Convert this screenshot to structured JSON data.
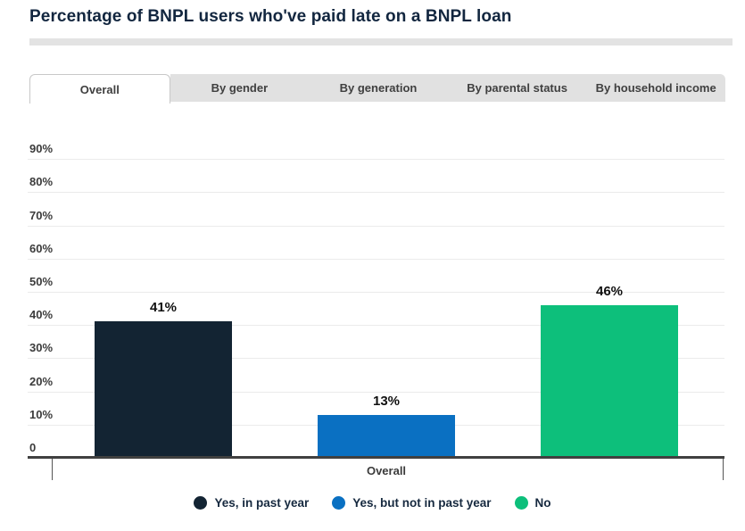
{
  "title": "Percentage of BNPL users who've paid late on a BNPL loan",
  "tabs": {
    "items": [
      {
        "label": "Overall",
        "active": true
      },
      {
        "label": "By gender",
        "active": false
      },
      {
        "label": "By generation",
        "active": false
      },
      {
        "label": "By parental status",
        "active": false
      },
      {
        "label": "By household income",
        "active": false
      }
    ]
  },
  "chart_data": {
    "type": "bar",
    "title": "Percentage of BNPL users who've paid late on a BNPL loan",
    "categories": [
      "Overall"
    ],
    "series": [
      {
        "name": "Yes, in past year",
        "values": [
          41
        ],
        "labels": [
          "41%"
        ],
        "color": "#132433"
      },
      {
        "name": "Yes, but not in past year",
        "values": [
          13
        ],
        "labels": [
          "13%"
        ],
        "color": "#0a70c2"
      },
      {
        "name": "No",
        "values": [
          46
        ],
        "labels": [
          "46%"
        ],
        "color": "#0dbf7b"
      }
    ],
    "xlabel": "",
    "ylabel": "",
    "ylim": [
      0,
      90
    ],
    "grid": true,
    "legend_position": "bottom",
    "y_axis_ticks": [
      {
        "label": "90%",
        "value": 90
      },
      {
        "label": "80%",
        "value": 80
      },
      {
        "label": "70%",
        "value": 70
      },
      {
        "label": "60%",
        "value": 60
      },
      {
        "label": "50%",
        "value": 50
      },
      {
        "label": "40%",
        "value": 40
      },
      {
        "label": "30%",
        "value": 30
      },
      {
        "label": "20%",
        "value": 20
      },
      {
        "label": "10%",
        "value": 10
      },
      {
        "label": "0",
        "value": 0
      }
    ]
  },
  "colors": {
    "title_text": "#12263f",
    "series_dark_navy": "#132433",
    "series_blue": "#0a70c2",
    "series_green": "#0dbf7b"
  }
}
